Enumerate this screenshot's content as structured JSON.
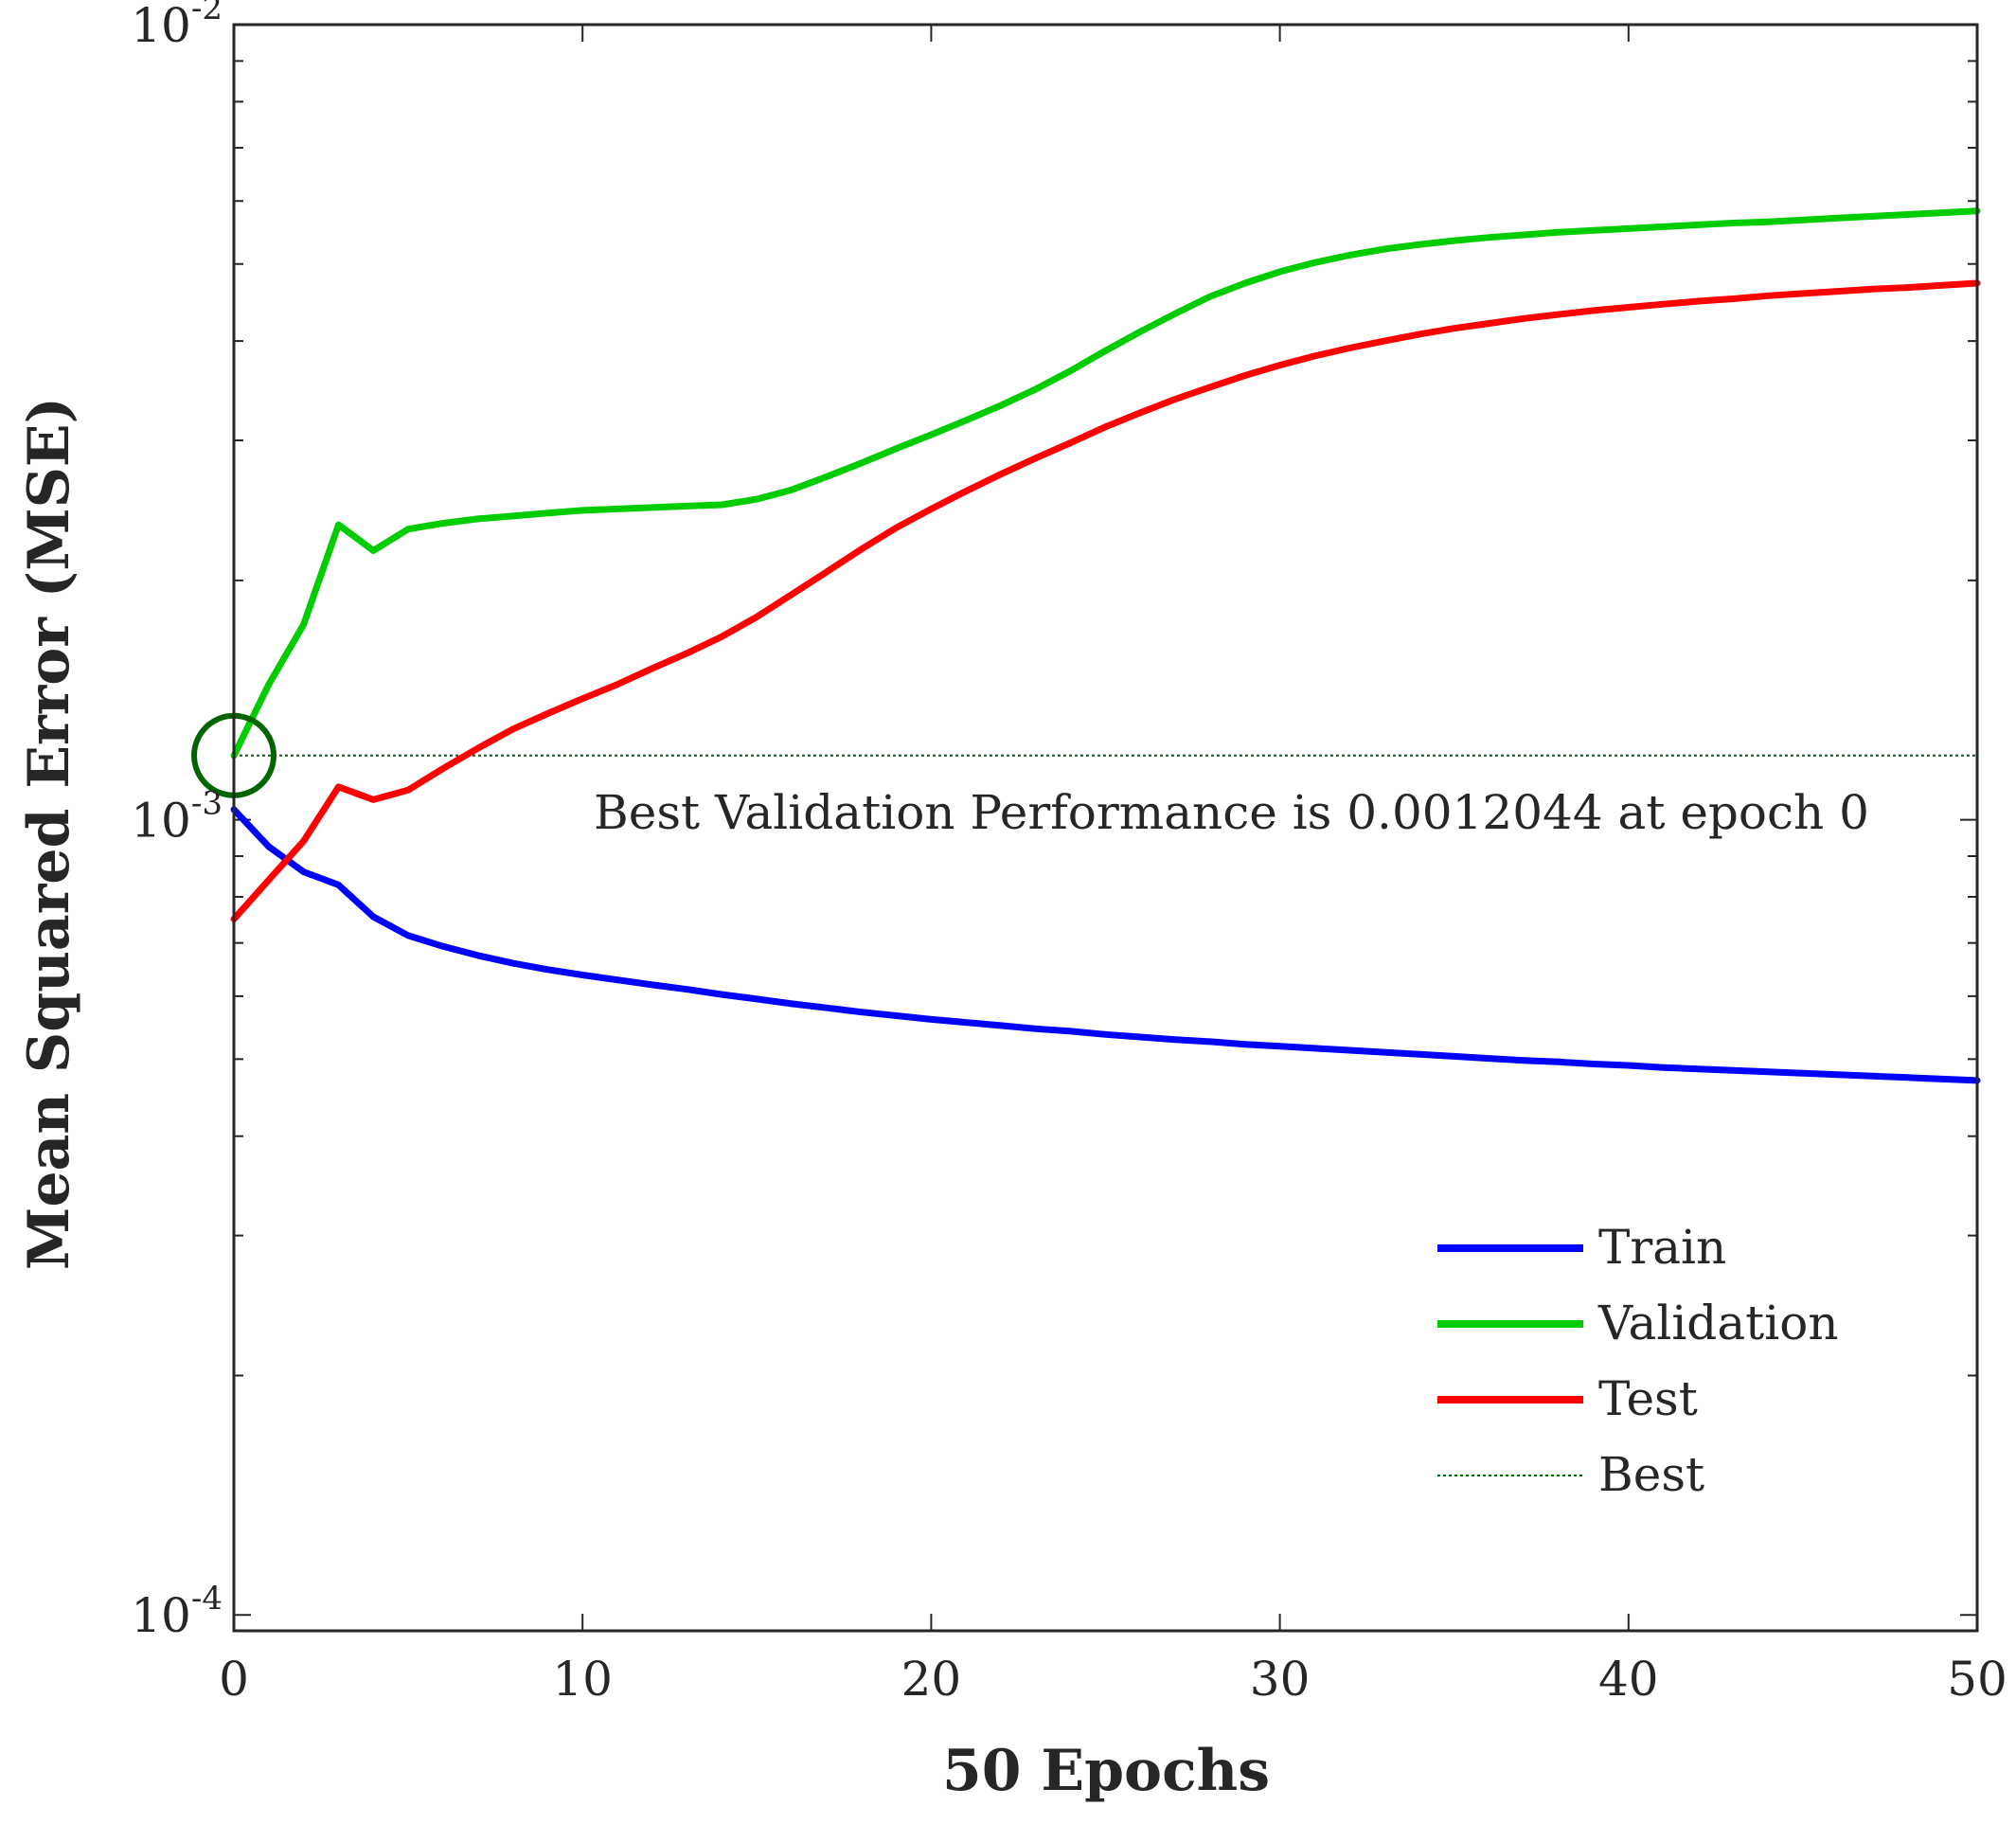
{
  "chart_data": {
    "type": "line",
    "title": "",
    "xlabel": "50 Epochs",
    "ylabel": "Mean Squared Error  (MSE)",
    "xlim": [
      0,
      50
    ],
    "ylim": [
      9.55e-05,
      0.01
    ],
    "yscale": "log",
    "grid": false,
    "legend_position": "bottom-right",
    "x_ticks": [
      {
        "value": 0,
        "label": "0"
      },
      {
        "value": 10,
        "label": "10"
      },
      {
        "value": 20,
        "label": "20"
      },
      {
        "value": 30,
        "label": "30"
      },
      {
        "value": 40,
        "label": "40"
      },
      {
        "value": 50,
        "label": "50"
      }
    ],
    "y_ticks": [
      {
        "value": 0.0001,
        "base": "10",
        "exp": "-4"
      },
      {
        "value": 0.001,
        "base": "10",
        "exp": "-3"
      },
      {
        "value": 0.01,
        "base": "10",
        "exp": "-2"
      }
    ],
    "x": [
      0,
      1,
      2,
      3,
      4,
      5,
      6,
      7,
      8,
      9,
      10,
      11,
      12,
      13,
      14,
      15,
      16,
      17,
      18,
      19,
      20,
      21,
      22,
      23,
      24,
      25,
      26,
      27,
      28,
      29,
      30,
      31,
      32,
      33,
      34,
      35,
      36,
      37,
      38,
      39,
      40,
      41,
      42,
      43,
      44,
      45,
      46,
      47,
      48,
      49,
      50
    ],
    "series": [
      {
        "name": "Train",
        "color": "#0000ff",
        "values": [
          0.00103,
          0.000925,
          0.00086,
          0.000828,
          0.000755,
          0.000715,
          0.000693,
          0.000675,
          0.00066,
          0.000648,
          0.000638,
          0.000629,
          0.00062,
          0.000612,
          0.000603,
          0.000595,
          0.000587,
          0.00058,
          0.000573,
          0.000567,
          0.000561,
          0.000556,
          0.000551,
          0.000546,
          0.000542,
          0.000537,
          0.000533,
          0.000529,
          0.000526,
          0.000522,
          0.000519,
          0.000516,
          0.000513,
          0.00051,
          0.000507,
          0.000504,
          0.000501,
          0.000498,
          0.000496,
          0.000493,
          0.000491,
          0.000488,
          0.000486,
          0.000484,
          0.000482,
          0.00048,
          0.000478,
          0.000476,
          0.000474,
          0.000472,
          0.00047
        ]
      },
      {
        "name": "Validation",
        "color": "#00cc00",
        "values": [
          0.0012044,
          0.00148,
          0.00176,
          0.00235,
          0.00218,
          0.00232,
          0.00236,
          0.00239,
          0.00241,
          0.00243,
          0.00245,
          0.00246,
          0.00247,
          0.00248,
          0.00249,
          0.00253,
          0.0026,
          0.0027,
          0.00281,
          0.00293,
          0.00305,
          0.00318,
          0.00332,
          0.00348,
          0.00367,
          0.00389,
          0.00411,
          0.00433,
          0.00455,
          0.00473,
          0.00489,
          0.00502,
          0.00513,
          0.00522,
          0.00529,
          0.00535,
          0.0054,
          0.00544,
          0.00548,
          0.00551,
          0.00554,
          0.00557,
          0.0056,
          0.00563,
          0.00565,
          0.00568,
          0.00571,
          0.00574,
          0.00577,
          0.0058,
          0.00583
        ]
      },
      {
        "name": "Test",
        "color": "#ff0000",
        "values": [
          0.00075,
          0.00084,
          0.00094,
          0.0011,
          0.00106,
          0.00109,
          0.00116,
          0.00123,
          0.0013,
          0.00136,
          0.00142,
          0.00148,
          0.00155,
          0.00162,
          0.0017,
          0.0018,
          0.00192,
          0.00205,
          0.00219,
          0.00233,
          0.00246,
          0.00259,
          0.00272,
          0.00285,
          0.00298,
          0.00312,
          0.00325,
          0.00338,
          0.0035,
          0.00362,
          0.00373,
          0.00383,
          0.00392,
          0.004,
          0.00408,
          0.00415,
          0.00421,
          0.00427,
          0.00432,
          0.00437,
          0.00441,
          0.00445,
          0.00449,
          0.00452,
          0.00456,
          0.00459,
          0.00462,
          0.00465,
          0.00467,
          0.0047,
          0.00473
        ]
      }
    ],
    "best": {
      "legend": "Best",
      "color": "#006400",
      "value": 0.0012044,
      "epoch": 0
    },
    "annotation": "Best Validation Performance is 0.0012044 at epoch 0"
  }
}
